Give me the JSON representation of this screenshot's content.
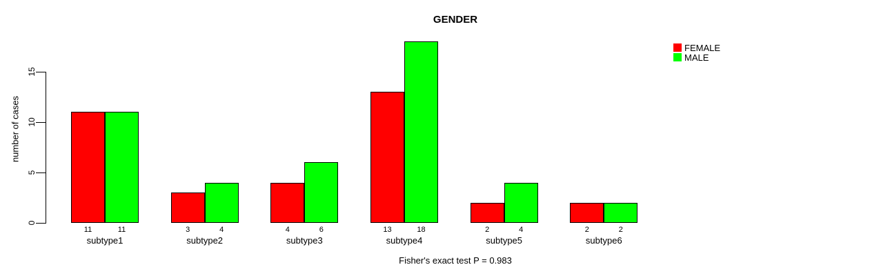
{
  "chart_data": {
    "type": "bar",
    "title": "GENDER",
    "xlabel": "",
    "ylabel": "number of cases",
    "categories": [
      "subtype1",
      "subtype2",
      "subtype3",
      "subtype4",
      "subtype5",
      "subtype6"
    ],
    "series": [
      {
        "name": "FEMALE",
        "color": "#FF0000",
        "values": [
          11,
          3,
          4,
          13,
          2,
          2
        ]
      },
      {
        "name": "MALE",
        "color": "#00FF00",
        "values": [
          11,
          4,
          6,
          18,
          4,
          2
        ]
      }
    ],
    "bar_value_labels_shown": true,
    "yticks": [
      0,
      5,
      10,
      15
    ],
    "ylim": [
      0,
      18
    ],
    "grid": false,
    "legend_position": "top-right",
    "annotation": "Fisher's exact test P = 0.983"
  }
}
